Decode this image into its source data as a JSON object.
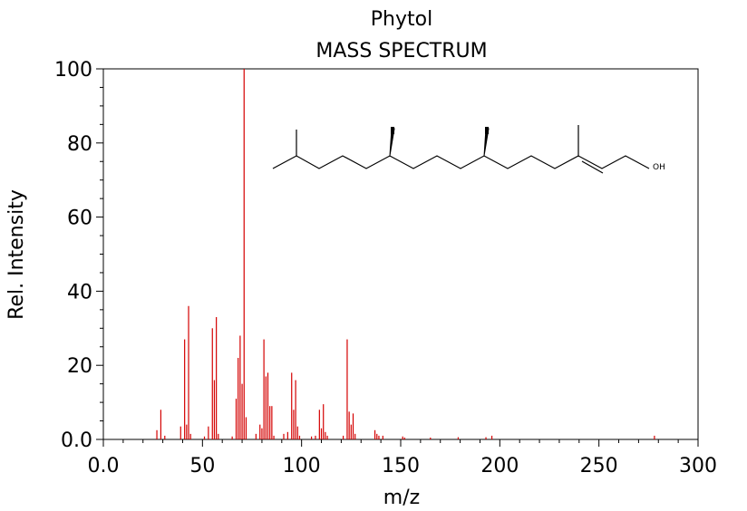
{
  "chart_data": {
    "type": "bar",
    "title": "Phytol",
    "subtitle": "MASS SPECTRUM",
    "xlabel": "m/z",
    "ylabel": "Rel. Intensity",
    "xlim": [
      0,
      300
    ],
    "ylim": [
      0,
      100
    ],
    "x_ticks": [
      "0.0",
      "50",
      "100",
      "150",
      "200",
      "250",
      "300"
    ],
    "y_ticks": [
      "0.0",
      "20",
      "40",
      "60",
      "80",
      "100"
    ],
    "grid": false,
    "bar_color": "#d40000",
    "peaks": [
      [
        27,
        2.5
      ],
      [
        29,
        8
      ],
      [
        31,
        1
      ],
      [
        39,
        3.5
      ],
      [
        41,
        27
      ],
      [
        42,
        4
      ],
      [
        43,
        36
      ],
      [
        44,
        1.5
      ],
      [
        51,
        0.8
      ],
      [
        53,
        3.5
      ],
      [
        55,
        30
      ],
      [
        56,
        16
      ],
      [
        57,
        33
      ],
      [
        58,
        1.5
      ],
      [
        65,
        0.8
      ],
      [
        67,
        11
      ],
      [
        68,
        22
      ],
      [
        69,
        28
      ],
      [
        70,
        15
      ],
      [
        71,
        100
      ],
      [
        72,
        6
      ],
      [
        77,
        1.5
      ],
      [
        79,
        4
      ],
      [
        80,
        3
      ],
      [
        81,
        27
      ],
      [
        82,
        17
      ],
      [
        83,
        18
      ],
      [
        84,
        9
      ],
      [
        85,
        9
      ],
      [
        86,
        1
      ],
      [
        91,
        1.5
      ],
      [
        93,
        2
      ],
      [
        95,
        18
      ],
      [
        96,
        8
      ],
      [
        97,
        16
      ],
      [
        98,
        3.5
      ],
      [
        99,
        1
      ],
      [
        105,
        0.8
      ],
      [
        107,
        1
      ],
      [
        109,
        8
      ],
      [
        110,
        3
      ],
      [
        111,
        9.5
      ],
      [
        112,
        2
      ],
      [
        113,
        1
      ],
      [
        121,
        1
      ],
      [
        123,
        27
      ],
      [
        124,
        7.5
      ],
      [
        125,
        4
      ],
      [
        126,
        7
      ],
      [
        127,
        1.5
      ],
      [
        137,
        2.5
      ],
      [
        138,
        1.5
      ],
      [
        139,
        1
      ],
      [
        141,
        1
      ],
      [
        151,
        0.8
      ],
      [
        152,
        0.5
      ],
      [
        165,
        0.5
      ],
      [
        179,
        0.6
      ],
      [
        193,
        0.6
      ],
      [
        196,
        1
      ],
      [
        278,
        1
      ]
    ],
    "structure_label": "OH"
  }
}
